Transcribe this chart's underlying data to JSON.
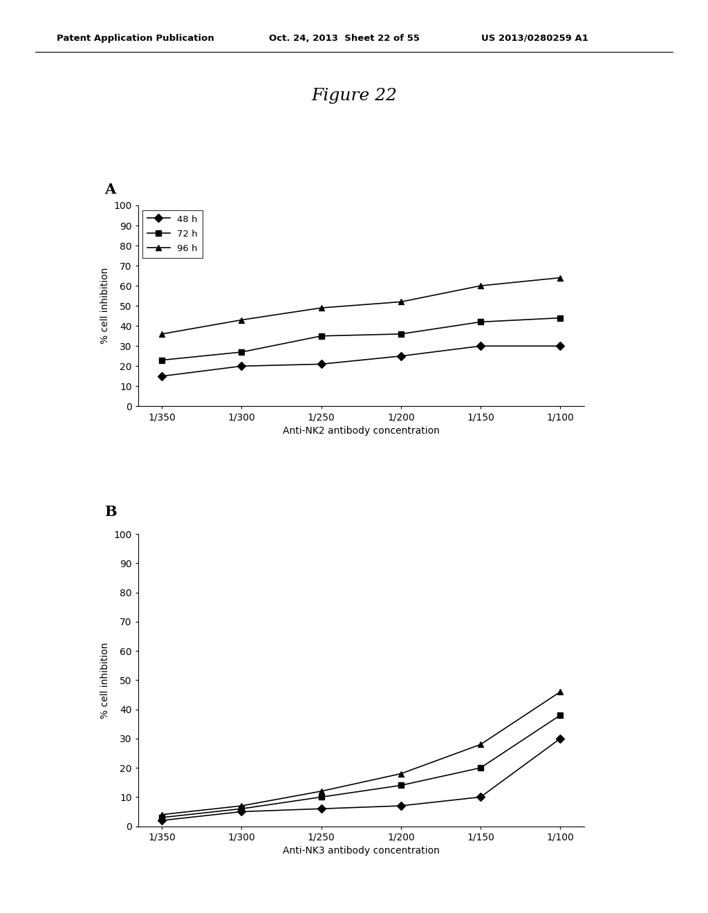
{
  "figure_title": "Figure 22",
  "header_left": "Patent Application Publication",
  "header_middle": "Oct. 24, 2013  Sheet 22 of 55",
  "header_right": "US 2013/0280259 A1",
  "panel_A": {
    "label": "A",
    "xlabel": "Anti-NK2 antibody concentration",
    "ylabel": "% cell inhibition",
    "x_labels": [
      "1/350",
      "1/300",
      "1/250",
      "1/200",
      "1/150",
      "1/100"
    ],
    "ylim": [
      0,
      100
    ],
    "yticks": [
      0,
      10,
      20,
      30,
      40,
      50,
      60,
      70,
      80,
      90,
      100
    ],
    "series": [
      {
        "label": "48 h",
        "values": [
          15,
          20,
          21,
          25,
          30,
          30
        ],
        "marker": "D",
        "color": "#000000"
      },
      {
        "label": "72 h",
        "values": [
          23,
          27,
          35,
          36,
          42,
          44
        ],
        "marker": "s",
        "color": "#000000"
      },
      {
        "label": "96 h",
        "values": [
          36,
          43,
          49,
          52,
          60,
          64
        ],
        "marker": "^",
        "color": "#000000"
      }
    ]
  },
  "panel_B": {
    "label": "B",
    "xlabel": "Anti-NK3 antibody concentration",
    "ylabel": "% cell inhibition",
    "x_labels": [
      "1/350",
      "1/300",
      "1/250",
      "1/200",
      "1/150",
      "1/100"
    ],
    "ylim": [
      0,
      100
    ],
    "yticks": [
      0,
      10,
      20,
      30,
      40,
      50,
      60,
      70,
      80,
      90,
      100
    ],
    "series": [
      {
        "label": "48 h",
        "values": [
          2,
          5,
          6,
          7,
          10,
          30
        ],
        "marker": "D",
        "color": "#000000"
      },
      {
        "label": "72 h",
        "values": [
          3,
          6,
          10,
          14,
          20,
          38
        ],
        "marker": "s",
        "color": "#000000"
      },
      {
        "label": "96 h",
        "values": [
          4,
          7,
          12,
          18,
          28,
          46
        ],
        "marker": "^",
        "color": "#000000"
      }
    ]
  },
  "background_color": "#ffffff",
  "line_color": "#000000"
}
